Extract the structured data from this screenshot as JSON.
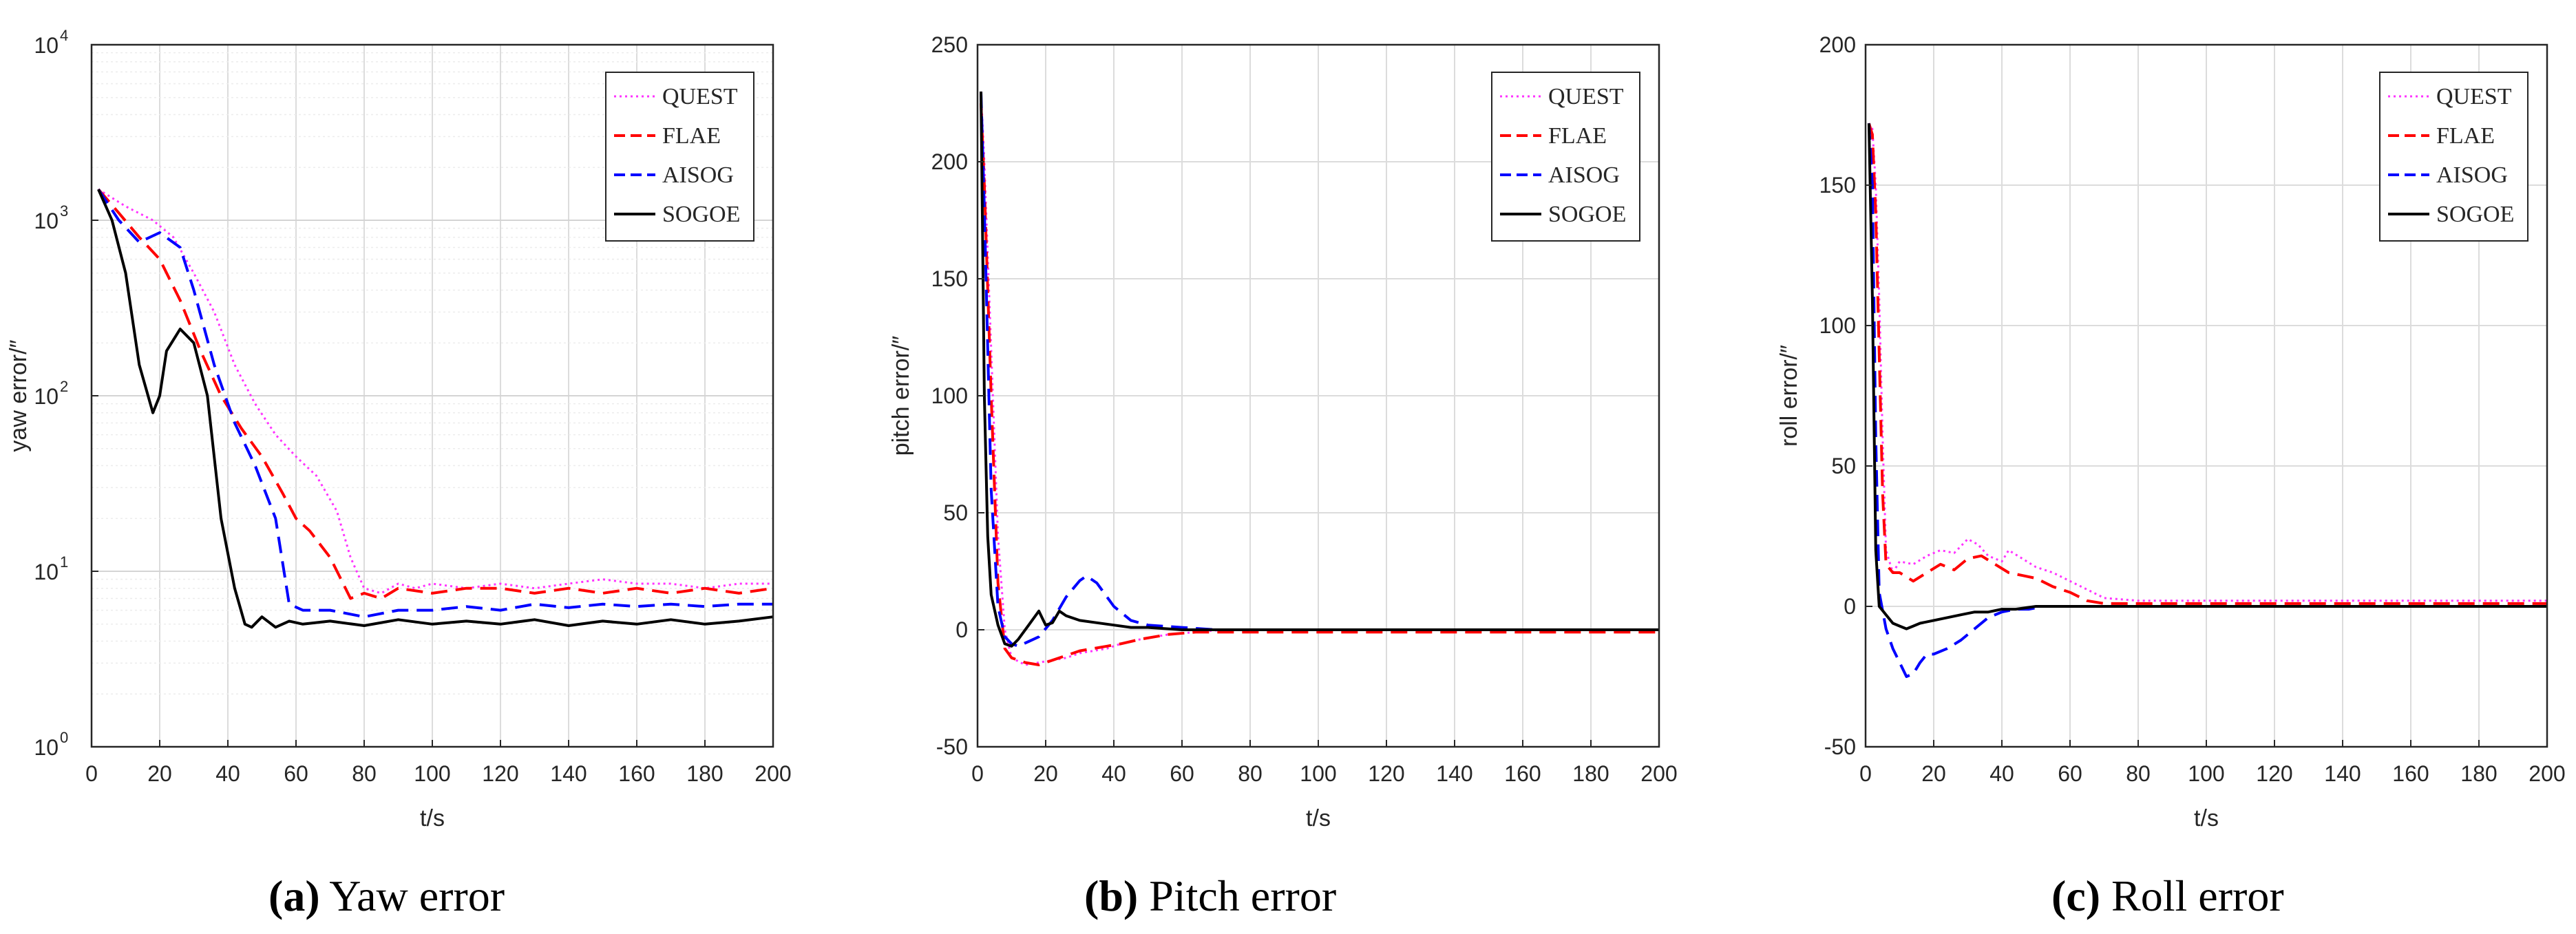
{
  "captions": [
    {
      "label": "(a)",
      "text": "Yaw error"
    },
    {
      "label": "(b)",
      "text": "Pitch error"
    },
    {
      "label": "(c)",
      "text": "Roll error"
    }
  ],
  "legend_entries": [
    "QUEST",
    "FLAE",
    "AISOG",
    "SOGOE"
  ],
  "series_colors": {
    "QUEST": "#ff33ff",
    "FLAE": "#ff0000",
    "AISOG": "#0000ff",
    "SOGOE": "#000000"
  },
  "chart_data": [
    {
      "type": "line",
      "xlabel": "t/s",
      "ylabel": "yaw error/″",
      "xlim": [
        0,
        200
      ],
      "ylim": [
        1,
        10000
      ],
      "yscale": "log",
      "xticks": [
        0,
        20,
        40,
        60,
        80,
        100,
        120,
        140,
        160,
        180,
        200
      ],
      "ytick_labels": [
        {
          "base": "10",
          "exp": "0"
        },
        {
          "base": "10",
          "exp": "1"
        },
        {
          "base": "10",
          "exp": "2"
        },
        {
          "base": "10",
          "exp": "3"
        },
        {
          "base": "10",
          "exp": "4"
        }
      ],
      "grid": true,
      "legend_position": "top-right",
      "series": [
        {
          "name": "QUEST",
          "x": [
            2,
            10,
            18,
            24,
            30,
            36,
            42,
            48,
            54,
            60,
            66,
            72,
            76,
            80,
            85,
            90,
            95,
            100,
            110,
            120,
            130,
            140,
            150,
            160,
            170,
            180,
            190,
            200
          ],
          "y": [
            1500,
            1200,
            1000,
            800,
            500,
            300,
            150,
            90,
            60,
            45,
            35,
            22,
            12,
            8,
            7.5,
            8.5,
            8,
            8.5,
            8,
            8.5,
            8,
            8.5,
            9,
            8.5,
            8.5,
            8,
            8.5,
            8.5
          ]
        },
        {
          "name": "FLAE",
          "x": [
            2,
            8,
            14,
            20,
            26,
            32,
            38,
            44,
            50,
            56,
            60,
            64,
            70,
            76,
            80,
            85,
            90,
            100,
            110,
            120,
            130,
            140,
            150,
            160,
            170,
            180,
            190,
            200
          ],
          "y": [
            1500,
            1100,
            800,
            600,
            350,
            180,
            100,
            65,
            45,
            28,
            20,
            17,
            12,
            7,
            7.5,
            7,
            8,
            7.5,
            8,
            8,
            7.5,
            8,
            7.5,
            8,
            7.5,
            8,
            7.5,
            8
          ]
        },
        {
          "name": "AISOG",
          "x": [
            2,
            8,
            14,
            20,
            26,
            30,
            36,
            42,
            48,
            54,
            58,
            62,
            70,
            80,
            90,
            100,
            110,
            120,
            130,
            140,
            150,
            160,
            170,
            180,
            190,
            200
          ],
          "y": [
            1500,
            1000,
            750,
            850,
            700,
            400,
            150,
            70,
            40,
            20,
            6.5,
            6,
            6,
            5.5,
            6,
            6,
            6.3,
            6,
            6.5,
            6.2,
            6.5,
            6.3,
            6.5,
            6.3,
            6.5,
            6.5
          ]
        },
        {
          "name": "SOGOE",
          "x": [
            2,
            6,
            10,
            14,
            18,
            20,
            22,
            26,
            30,
            34,
            38,
            42,
            45,
            47,
            50,
            54,
            58,
            62,
            70,
            80,
            90,
            100,
            110,
            120,
            130,
            140,
            150,
            160,
            170,
            180,
            190,
            200
          ],
          "y": [
            1500,
            1000,
            500,
            150,
            80,
            100,
            180,
            240,
            200,
            100,
            20,
            8,
            5,
            4.8,
            5.5,
            4.8,
            5.2,
            5,
            5.2,
            4.9,
            5.3,
            5,
            5.2,
            5,
            5.3,
            4.9,
            5.2,
            5,
            5.3,
            5,
            5.2,
            5.5
          ]
        }
      ]
    },
    {
      "type": "line",
      "xlabel": "t/s",
      "ylabel": "pitch error/″",
      "xlim": [
        0,
        200
      ],
      "ylim": [
        -50,
        250
      ],
      "xticks": [
        0,
        20,
        40,
        60,
        80,
        100,
        120,
        140,
        160,
        180,
        200
      ],
      "yticks": [
        -50,
        0,
        50,
        100,
        150,
        200,
        250
      ],
      "grid": true,
      "legend_position": "top-right",
      "series": [
        {
          "name": "QUEST",
          "x": [
            1,
            2,
            4,
            6,
            8,
            10,
            14,
            18,
            22,
            26,
            30,
            34,
            38,
            42,
            48,
            56,
            64,
            72,
            80,
            100,
            150,
            200
          ],
          "y": [
            230,
            200,
            120,
            40,
            0,
            -12,
            -15,
            -14,
            -13,
            -12,
            -10,
            -9,
            -8,
            -6,
            -4,
            -2,
            -1,
            0,
            0,
            0,
            0,
            0
          ]
        },
        {
          "name": "FLAE",
          "x": [
            1,
            2,
            4,
            6,
            8,
            10,
            14,
            18,
            22,
            26,
            30,
            34,
            38,
            42,
            48,
            56,
            64,
            72,
            80,
            100,
            150,
            200
          ],
          "y": [
            225,
            190,
            100,
            20,
            -8,
            -12,
            -14,
            -15,
            -13,
            -11,
            -9,
            -8,
            -7,
            -6,
            -4,
            -2,
            -1,
            -1,
            -1,
            -1,
            -1,
            -1
          ]
        },
        {
          "name": "AISOG",
          "x": [
            1,
            2,
            4,
            6,
            8,
            10,
            12,
            15,
            18,
            22,
            26,
            30,
            32,
            35,
            40,
            45,
            50,
            60,
            70,
            100,
            150,
            200
          ],
          "y": [
            230,
            180,
            60,
            10,
            -3,
            -6,
            -7,
            -5,
            -3,
            4,
            14,
            21,
            23,
            20,
            10,
            4,
            2,
            1,
            0,
            0,
            0,
            0
          ]
        },
        {
          "name": "SOGOE",
          "x": [
            1,
            2,
            3,
            4,
            6,
            8,
            10,
            12,
            15,
            18,
            19,
            20,
            22,
            24,
            26,
            30,
            35,
            40,
            45,
            50,
            60,
            80,
            100,
            150,
            200
          ],
          "y": [
            230,
            100,
            40,
            15,
            2,
            -6,
            -7,
            -4,
            2,
            8,
            5,
            2,
            3,
            8,
            6,
            4,
            3,
            2,
            1,
            1,
            0,
            0,
            0,
            0,
            0
          ]
        }
      ]
    },
    {
      "type": "line",
      "xlabel": "t/s",
      "ylabel": "roll error/″",
      "xlim": [
        0,
        200
      ],
      "ylim": [
        -50,
        200
      ],
      "xticks": [
        0,
        20,
        40,
        60,
        80,
        100,
        120,
        140,
        160,
        180,
        200
      ],
      "yticks": [
        -50,
        0,
        50,
        100,
        150,
        200
      ],
      "grid": true,
      "legend_position": "top-right",
      "series": [
        {
          "name": "QUEST",
          "x": [
            1,
            2,
            3,
            4,
            5,
            6,
            8,
            10,
            14,
            18,
            22,
            26,
            30,
            33,
            36,
            40,
            42,
            46,
            50,
            55,
            60,
            65,
            70,
            80,
            100,
            150,
            200
          ],
          "y": [
            172,
            170,
            150,
            110,
            60,
            20,
            12,
            16,
            15,
            18,
            20,
            19,
            24,
            22,
            18,
            16,
            20,
            17,
            14,
            12,
            9,
            6,
            3,
            2,
            2,
            2,
            2
          ]
        },
        {
          "name": "FLAE",
          "x": [
            1,
            2,
            3,
            4,
            5,
            6,
            8,
            10,
            14,
            18,
            22,
            26,
            30,
            34,
            38,
            42,
            46,
            50,
            55,
            60,
            65,
            70,
            80,
            100,
            150,
            200
          ],
          "y": [
            172,
            168,
            140,
            90,
            40,
            15,
            12,
            12,
            9,
            12,
            15,
            13,
            17,
            18,
            15,
            12,
            11,
            10,
            7,
            5,
            2,
            1,
            1,
            1,
            1,
            1
          ]
        },
        {
          "name": "AISOG",
          "x": [
            1,
            2,
            3,
            4,
            6,
            8,
            10,
            12,
            14,
            16,
            18,
            20,
            24,
            28,
            32,
            36,
            40,
            44,
            48,
            52,
            56,
            60,
            70,
            100,
            150,
            200
          ],
          "y": [
            172,
            150,
            60,
            5,
            -8,
            -15,
            -20,
            -25,
            -24,
            -20,
            -17,
            -17,
            -15,
            -12,
            -8,
            -4,
            -2,
            -1,
            -1,
            0,
            0,
            0,
            0,
            0,
            0,
            0
          ]
        },
        {
          "name": "SOGOE",
          "x": [
            1,
            2,
            3,
            4,
            6,
            8,
            10,
            12,
            14,
            16,
            20,
            24,
            28,
            32,
            36,
            40,
            44,
            50,
            56,
            60,
            70,
            100,
            150,
            200
          ],
          "y": [
            172,
            110,
            20,
            0,
            -3,
            -6,
            -7,
            -8,
            -7,
            -6,
            -5,
            -4,
            -3,
            -2,
            -2,
            -1,
            -1,
            0,
            0,
            0,
            0,
            0,
            0,
            0
          ]
        }
      ]
    }
  ]
}
